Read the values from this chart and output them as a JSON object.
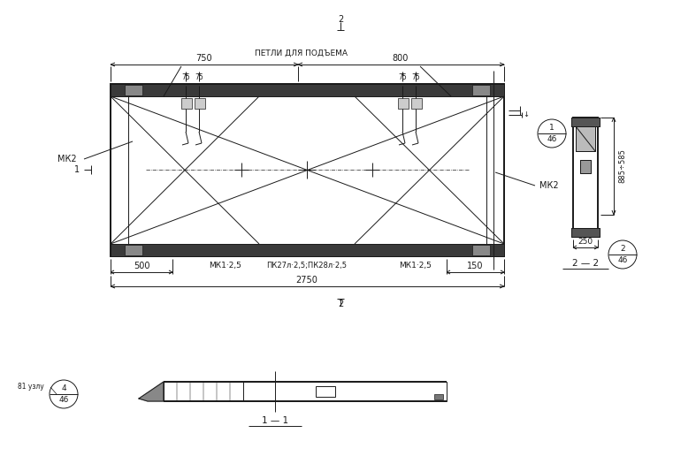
{
  "bg_color": "#ffffff",
  "line_color": "#1a1a1a",
  "fig_width": 7.87,
  "fig_height": 5.16,
  "dpi": 100,
  "labels": {
    "dim_750": "750",
    "dim_800": "800",
    "dim_75a": "75",
    "dim_75b": "75",
    "dim_75c": "75",
    "dim_75d": "75",
    "petli": "ПЕТЛИ ДЛЯ ПОДЪЕМА",
    "mk2_left": "МК2",
    "mk2_right": "МК2",
    "mk1_left": "МК1·2,5",
    "mk1_right": "МК1·2,5",
    "pk": "ПК27л·2,5;ПК28л·2,5",
    "dim_500": "500",
    "dim_150": "150",
    "dim_2750": "2750",
    "dim_885": "885÷585",
    "dim_250": "250",
    "sec_22": "2 — 2",
    "sec_11": "1 — 1",
    "weight": "81 узлу",
    "marker_2top": "2",
    "marker_2bot": "2",
    "marker_1left": "1"
  }
}
